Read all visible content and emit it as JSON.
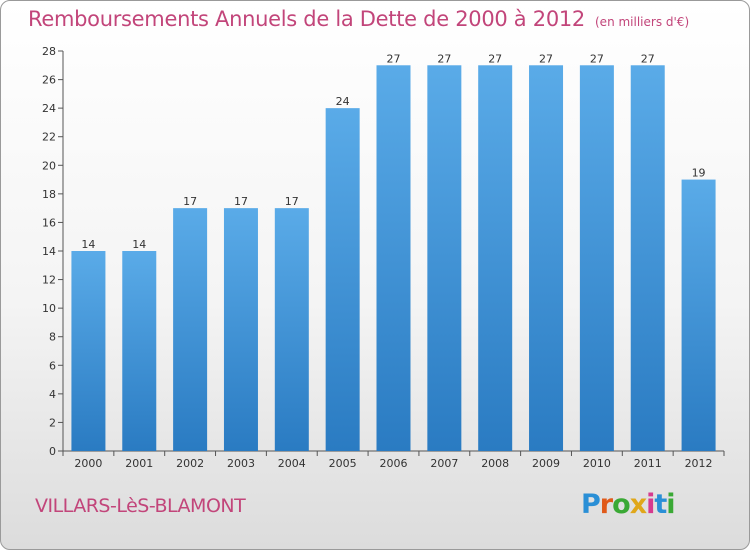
{
  "header": {
    "title": "Remboursements Annuels de la Dette de 2000 à 2012",
    "subtitle": "(en milliers d'€)"
  },
  "footer": {
    "commune": "VILLARS-LèS-BLAMONT",
    "logo": {
      "letters": [
        "P",
        "r",
        "o",
        "x",
        "i",
        "t",
        "i"
      ],
      "colors": [
        "#2a8fd6",
        "#e05a1a",
        "#3aa935",
        "#e0a71a",
        "#d63a8f",
        "#2a8fd6",
        "#3aa935"
      ]
    }
  },
  "chart_data": {
    "type": "bar",
    "categories": [
      "2000",
      "2001",
      "2002",
      "2003",
      "2004",
      "2005",
      "2006",
      "2007",
      "2008",
      "2009",
      "2010",
      "2011",
      "2012"
    ],
    "values": [
      14,
      14,
      17,
      17,
      17,
      24,
      27,
      27,
      27,
      27,
      27,
      27,
      19
    ],
    "ylim": [
      0,
      28
    ],
    "yticks": [
      0,
      2,
      4,
      6,
      8,
      10,
      12,
      14,
      16,
      18,
      20,
      22,
      24,
      26,
      28
    ],
    "grid": false,
    "colors": {
      "bar_top": "#5aabe8",
      "bar_bottom": "#2a7bc2",
      "axis": "#555555"
    }
  }
}
